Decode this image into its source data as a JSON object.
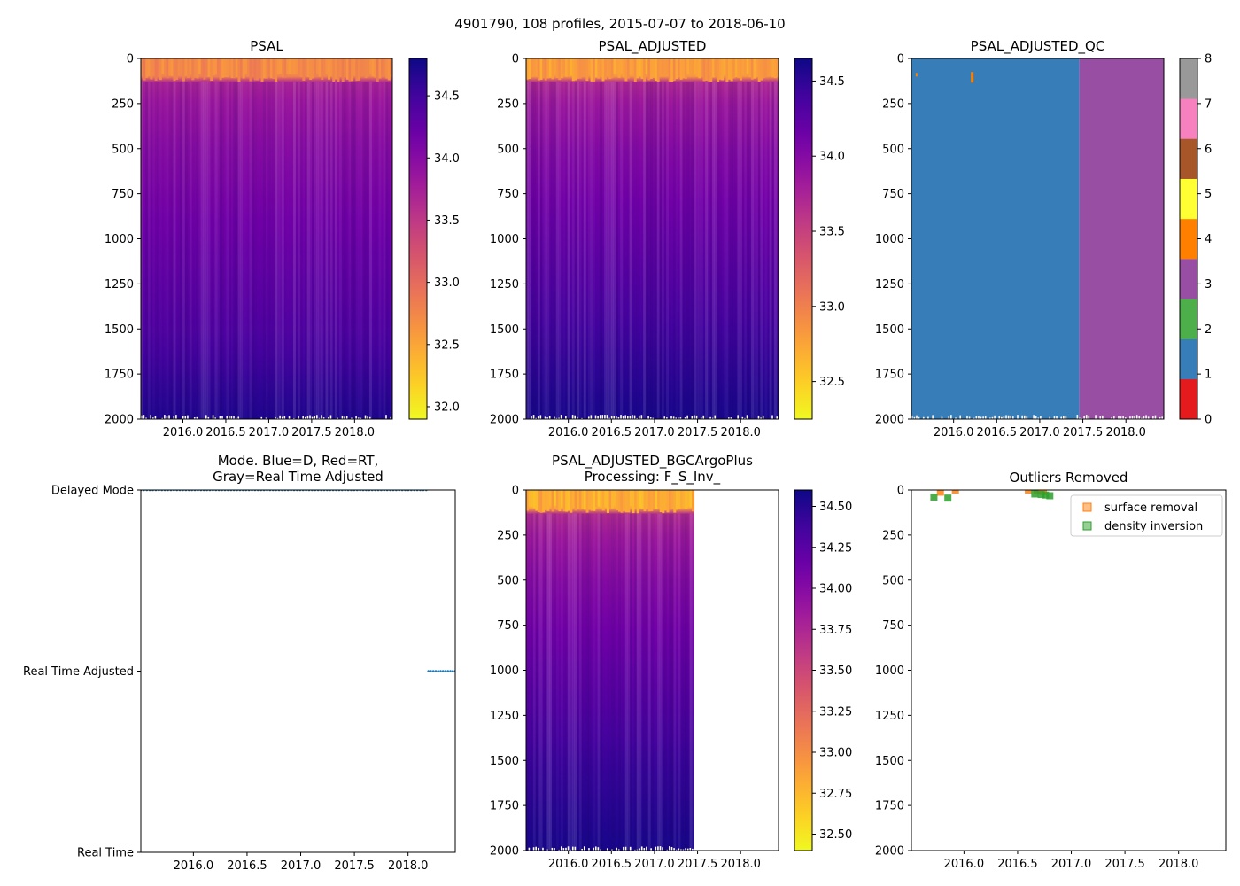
{
  "figure": {
    "suptitle": "4901790, 108 profiles, 2015-07-07 to 2018-06-10"
  },
  "colors": {
    "plasma": [
      "#0d0887",
      "#46039f",
      "#7201a8",
      "#9c179e",
      "#bd3786",
      "#d8576b",
      "#ed7953",
      "#fb9f3a",
      "#fdca26",
      "#f0f921"
    ],
    "qc": [
      "#e41a1c",
      "#377eb8",
      "#4daf4a",
      "#984ea3",
      "#ff7f00",
      "#ffff33",
      "#a65628",
      "#f781bf",
      "#999999"
    ],
    "mode_points": "#1f77b4",
    "surface_removal": "#ff7f0e",
    "density_inversion": "#2ca02c"
  },
  "chart_data": [
    {
      "id": "psal",
      "type": "heatmap",
      "title": "PSAL",
      "x_range": [
        2015.51,
        2018.44
      ],
      "x_ticks": [
        2016.0,
        2016.5,
        2017.0,
        2017.5,
        2018.0
      ],
      "x_tick_labels": [
        "2016.0",
        "2016.5",
        "2017.0",
        "2017.5",
        "2018.0"
      ],
      "y_range": [
        2000,
        0
      ],
      "y_ticks": [
        0,
        250,
        500,
        750,
        1000,
        1250,
        1500,
        1750,
        2000
      ],
      "y_tick_labels": [
        "0",
        "250",
        "500",
        "750",
        "1000",
        "1250",
        "1500",
        "1750",
        "2000"
      ],
      "data_x_extent": [
        2015.51,
        2018.44
      ],
      "cmap": "plasma_r",
      "clim": [
        31.9,
        34.8
      ],
      "colorbar_ticks": [
        32.0,
        32.5,
        33.0,
        33.5,
        34.0,
        34.5
      ],
      "colorbar_tick_labels": [
        "32.0",
        "32.5",
        "33.0",
        "33.5",
        "34.0",
        "34.5"
      ],
      "profile": {
        "depth": [
          0,
          100,
          120,
          250,
          500,
          1000,
          1500,
          2000
        ],
        "value": [
          32.4,
          32.8,
          33.7,
          33.85,
          34.0,
          34.2,
          34.4,
          34.7
        ]
      }
    },
    {
      "id": "psal_adjusted",
      "type": "heatmap",
      "title": "PSAL_ADJUSTED",
      "x_range": [
        2015.51,
        2018.44
      ],
      "x_ticks": [
        2016.0,
        2016.5,
        2017.0,
        2017.5,
        2018.0
      ],
      "x_tick_labels": [
        "2016.0",
        "2016.5",
        "2017.0",
        "2017.5",
        "2018.0"
      ],
      "y_range": [
        2000,
        0
      ],
      "y_ticks": [
        0,
        250,
        500,
        750,
        1000,
        1250,
        1500,
        1750,
        2000
      ],
      "y_tick_labels": [
        "0",
        "250",
        "500",
        "750",
        "1000",
        "1250",
        "1500",
        "1750",
        "2000"
      ],
      "data_x_extent": [
        2015.51,
        2018.44
      ],
      "cmap": "plasma_r",
      "clim": [
        32.25,
        34.65
      ],
      "colorbar_ticks": [
        32.5,
        33.0,
        33.5,
        34.0,
        34.5
      ],
      "colorbar_tick_labels": [
        "32.5",
        "33.0",
        "33.5",
        "34.0",
        "34.5"
      ],
      "profile": {
        "depth": [
          0,
          100,
          120,
          250,
          500,
          1000,
          1500,
          2000
        ],
        "value": [
          32.45,
          32.85,
          33.7,
          33.85,
          34.0,
          34.2,
          34.4,
          34.6
        ]
      }
    },
    {
      "id": "psal_adjusted_qc",
      "type": "heatmap",
      "title": "PSAL_ADJUSTED_QC",
      "x_range": [
        2015.51,
        2018.44
      ],
      "x_ticks": [
        2016.0,
        2016.5,
        2017.0,
        2017.5,
        2018.0
      ],
      "x_tick_labels": [
        "2016.0",
        "2016.5",
        "2017.0",
        "2017.5",
        "2018.0"
      ],
      "y_range": [
        2000,
        0
      ],
      "y_ticks": [
        0,
        250,
        500,
        750,
        1000,
        1250,
        1500,
        1750,
        2000
      ],
      "y_tick_labels": [
        "0",
        "250",
        "500",
        "750",
        "1000",
        "1250",
        "1500",
        "1750",
        "2000"
      ],
      "qc_segments": [
        {
          "x_from": 2015.51,
          "x_to": 2017.46,
          "qc": 1
        },
        {
          "x_from": 2017.46,
          "x_to": 2018.44,
          "qc": 3
        }
      ],
      "clim": [
        0,
        8
      ],
      "colorbar_ticks": [
        0,
        1,
        2,
        3,
        4,
        5,
        6,
        7,
        8
      ],
      "colorbar_tick_labels": [
        "0",
        "1",
        "2",
        "3",
        "4",
        "5",
        "6",
        "7",
        "8"
      ]
    },
    {
      "id": "mode",
      "type": "scatter",
      "title_lines": [
        "Mode. Blue=D, Red=RT,",
        "Gray=Real Time Adjusted"
      ],
      "x_range": [
        2015.51,
        2018.44
      ],
      "x_ticks": [
        2016.0,
        2016.5,
        2017.0,
        2017.5,
        2018.0
      ],
      "x_tick_labels": [
        "2016.0",
        "2016.5",
        "2017.0",
        "2017.5",
        "2018.0"
      ],
      "y_range": [
        0,
        2
      ],
      "y_ticks": [
        0,
        1,
        2
      ],
      "y_tick_labels": [
        "Real Time",
        "Real Time Adjusted",
        "Delayed Mode"
      ],
      "series": [
        {
          "name": "Delayed Mode",
          "level": 2,
          "x_start": 2015.51,
          "x_end": 2018.17,
          "count": 96
        },
        {
          "name": "Real Time Adjusted",
          "level": 1,
          "x_start": 2018.19,
          "x_end": 2018.44,
          "count": 12
        }
      ]
    },
    {
      "id": "psal_adjusted_bgc",
      "type": "heatmap",
      "title_lines": [
        "PSAL_ADJUSTED_BGCArgoPlus",
        "Processing: F_S_Inv_"
      ],
      "x_range": [
        2015.51,
        2018.44
      ],
      "x_ticks": [
        2016.0,
        2016.5,
        2017.0,
        2017.5,
        2018.0
      ],
      "x_tick_labels": [
        "2016.0",
        "2016.5",
        "2017.0",
        "2017.5",
        "2018.0"
      ],
      "y_range": [
        2000,
        0
      ],
      "y_ticks": [
        0,
        250,
        500,
        750,
        1000,
        1250,
        1500,
        1750,
        2000
      ],
      "y_tick_labels": [
        "0",
        "250",
        "500",
        "750",
        "1000",
        "1250",
        "1500",
        "1750",
        "2000"
      ],
      "data_x_extent": [
        2015.51,
        2017.46
      ],
      "cmap": "plasma_r",
      "clim": [
        32.4,
        34.6
      ],
      "colorbar_ticks": [
        32.5,
        32.75,
        33.0,
        33.25,
        33.5,
        33.75,
        34.0,
        34.25,
        34.5
      ],
      "colorbar_tick_labels": [
        "32.50",
        "32.75",
        "33.00",
        "33.25",
        "33.50",
        "33.75",
        "34.00",
        "34.25",
        "34.50"
      ],
      "profile": {
        "depth": [
          0,
          100,
          120,
          250,
          500,
          1000,
          1500,
          2000
        ],
        "value": [
          32.5,
          32.85,
          33.7,
          33.85,
          34.0,
          34.2,
          34.4,
          34.55
        ]
      }
    },
    {
      "id": "outliers",
      "type": "scatter",
      "title": "Outliers Removed",
      "x_range": [
        2015.51,
        2018.44
      ],
      "x_ticks": [
        2016.0,
        2016.5,
        2017.0,
        2017.5,
        2018.0
      ],
      "x_tick_labels": [
        "2016.0",
        "2016.5",
        "2017.0",
        "2017.5",
        "2018.0"
      ],
      "y_range": [
        2000,
        0
      ],
      "y_ticks": [
        0,
        250,
        500,
        750,
        1000,
        1250,
        1500,
        1750,
        2000
      ],
      "y_tick_labels": [
        "0",
        "250",
        "500",
        "750",
        "1000",
        "1250",
        "1500",
        "1750",
        "2000"
      ],
      "legend_position": "top-right",
      "series": [
        {
          "name": "surface removal",
          "points": [
            [
              2015.78,
              12
            ],
            [
              2015.92,
              0
            ],
            [
              2016.6,
              0
            ],
            [
              2016.68,
              5
            ],
            [
              2016.74,
              8
            ]
          ]
        },
        {
          "name": "density inversion",
          "points": [
            [
              2015.72,
              40
            ],
            [
              2015.85,
              45
            ],
            [
              2016.66,
              22
            ],
            [
              2016.72,
              25
            ],
            [
              2016.76,
              28
            ],
            [
              2016.8,
              32
            ]
          ]
        }
      ]
    }
  ]
}
